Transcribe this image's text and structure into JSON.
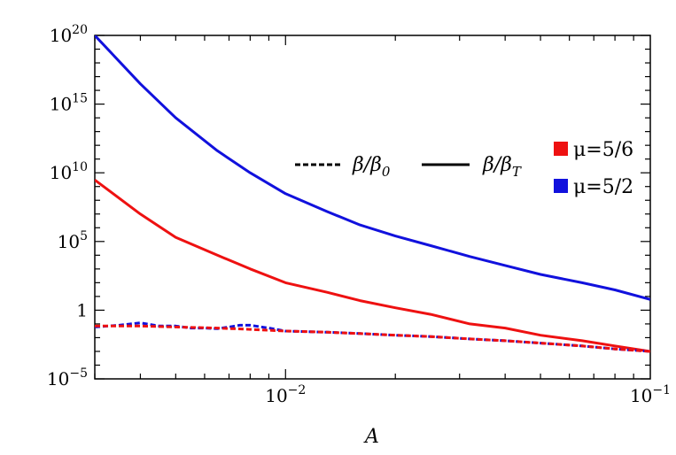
{
  "chart_data": {
    "type": "line",
    "title": "",
    "xlabel": "A",
    "ylabel": "",
    "x_scale": "log",
    "y_scale": "log",
    "xlim": [
      0.003,
      0.1
    ],
    "ylim": [
      1e-05,
      1e+20
    ],
    "x_ticks": [
      {
        "value": 0.01,
        "label": "10",
        "exp": "−2"
      },
      {
        "value": 0.1,
        "label": "10",
        "exp": "−1"
      }
    ],
    "y_ticks": [
      {
        "value": 1e-05,
        "label": "10",
        "exp": "−5"
      },
      {
        "value": 1,
        "label": "1",
        "exp": ""
      },
      {
        "value": 100000,
        "label": "10",
        "exp": "5"
      },
      {
        "value": 10000000000.0,
        "label": "10",
        "exp": "10"
      },
      {
        "value": 1000000000000000.0,
        "label": "10",
        "exp": "15"
      },
      {
        "value": 1e+20,
        "label": "10",
        "exp": "20"
      }
    ],
    "legend": {
      "position": "right",
      "style_entries": [
        {
          "label": "β/β0",
          "style": "dashed"
        },
        {
          "label": "β/βT",
          "style": "solid"
        }
      ],
      "color_entries": [
        {
          "label": "μ=5/6",
          "color": "#ee1111"
        },
        {
          "label": "μ=5/2",
          "color": "#1111dd"
        }
      ]
    },
    "series": [
      {
        "color": "#1111dd",
        "style": "solid",
        "x": [
          0.003,
          0.004,
          0.005,
          0.0065,
          0.008,
          0.01,
          0.013,
          0.016,
          0.02,
          0.025,
          0.032,
          0.04,
          0.05,
          0.065,
          0.08,
          0.1
        ],
        "y": [
          1e+20,
          3e+16,
          100000000000000.0,
          400000000000.0,
          10000000000.0,
          300000000.0,
          15000000.0,
          1600000.0,
          250000,
          50000,
          8000,
          1800,
          400,
          100,
          30,
          6
        ]
      },
      {
        "color": "#ee1111",
        "style": "solid",
        "x": [
          0.003,
          0.004,
          0.005,
          0.0065,
          0.008,
          0.01,
          0.013,
          0.016,
          0.02,
          0.025,
          0.032,
          0.04,
          0.05,
          0.065,
          0.08,
          0.1
        ],
        "y": [
          3000000000.0,
          10000000.0,
          200000,
          10000,
          1000,
          100,
          20,
          5,
          1.5,
          0.5,
          0.1,
          0.05,
          0.015,
          0.006,
          0.0025,
          0.001
        ]
      },
      {
        "color": "#1111dd",
        "style": "dashed",
        "x": [
          0.003,
          0.0035,
          0.004,
          0.0045,
          0.005,
          0.0055,
          0.006,
          0.0065,
          0.007,
          0.0075,
          0.008,
          0.009,
          0.01,
          0.013,
          0.016,
          0.02,
          0.025,
          0.032,
          0.04,
          0.05,
          0.065,
          0.08,
          0.1
        ],
        "y": [
          0.06,
          0.08,
          0.12,
          0.07,
          0.07,
          0.05,
          0.05,
          0.045,
          0.06,
          0.08,
          0.08,
          0.05,
          0.03,
          0.025,
          0.02,
          0.015,
          0.012,
          0.008,
          0.006,
          0.004,
          0.0025,
          0.0015,
          0.001
        ]
      },
      {
        "color": "#ee1111",
        "style": "dashed",
        "x": [
          0.003,
          0.004,
          0.005,
          0.0065,
          0.008,
          0.01,
          0.013,
          0.016,
          0.02,
          0.025,
          0.032,
          0.04,
          0.05,
          0.065,
          0.08,
          0.1
        ],
        "y": [
          0.07,
          0.07,
          0.06,
          0.05,
          0.04,
          0.03,
          0.025,
          0.02,
          0.015,
          0.012,
          0.008,
          0.006,
          0.004,
          0.0025,
          0.0015,
          0.001
        ]
      }
    ]
  }
}
